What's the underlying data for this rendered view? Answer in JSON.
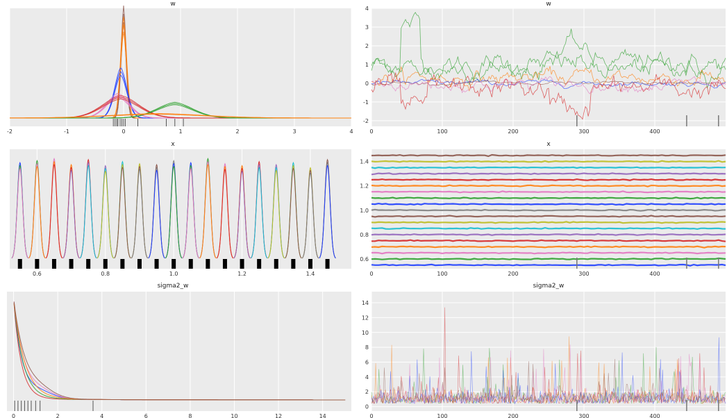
{
  "colors": {
    "panel_bg": "#ebebeb",
    "grid": "#ffffff",
    "palette": [
      "#1f3fff",
      "#2ca02c",
      "#e377c2",
      "#ff7f0e",
      "#d62728",
      "#9467bd",
      "#17becf",
      "#bcbd22",
      "#8c564b",
      "#7f7f7f"
    ]
  },
  "chart_data": [
    {
      "type": "area",
      "title": "w",
      "xlim": [
        -2,
        4
      ],
      "xticks": [
        "-2",
        "-1",
        "0",
        "1",
        "2",
        "3",
        "4"
      ],
      "grid": true,
      "description": "posterior density curves of w (several chains)",
      "series": [
        {
          "color": "#8c564b",
          "center": 0.0,
          "width": 0.05,
          "peak": 1.0
        },
        {
          "color": "#ff7f0e",
          "center": 0.0,
          "width": 0.06,
          "peak": 0.9
        },
        {
          "color": "#1f3fff",
          "center": -0.05,
          "width": 0.12,
          "peak": 0.45
        },
        {
          "color": "#e377c2",
          "center": -0.1,
          "width": 0.22,
          "peak": 0.22
        },
        {
          "color": "#d62728",
          "center": -0.05,
          "width": 0.35,
          "peak": 0.2
        },
        {
          "color": "#2ca02c",
          "center": 0.9,
          "width": 0.35,
          "peak": 0.14
        },
        {
          "color": "#ff7f0e",
          "center": 0.6,
          "width": 0.9,
          "peak": 0.04
        }
      ],
      "rug": [
        -0.18,
        -0.15,
        -0.12,
        -0.1,
        -0.06,
        -0.03,
        0.0,
        0.03,
        0.25,
        0.75,
        0.9,
        1.05
      ]
    },
    {
      "type": "line",
      "title": "w",
      "xlim": [
        0,
        500
      ],
      "ylim": [
        -2.3,
        4
      ],
      "xticks": [
        "0",
        "100",
        "200",
        "300",
        "400"
      ],
      "yticks": [
        "-2",
        "-1",
        "0",
        "1",
        "2",
        "3",
        "4"
      ],
      "grid": true,
      "description": "trace of w samples per chain",
      "series": [
        {
          "color": "#2ca02c",
          "level": 1.0,
          "amp": 0.35
        },
        {
          "color": "#2ca02c",
          "level": 0.8,
          "amp": 0.3
        },
        {
          "color": "#ff7f0e",
          "level": 0.3,
          "amp": 0.25
        },
        {
          "color": "#1f3fff",
          "level": 0.0,
          "amp": 0.08
        },
        {
          "color": "#8c564b",
          "level": 0.0,
          "amp": 0.05
        },
        {
          "color": "#e377c2",
          "level": -0.05,
          "amp": 0.18
        },
        {
          "color": "#d62728",
          "level": -0.3,
          "amp": 0.35
        }
      ],
      "markers": [
        290,
        445,
        490
      ]
    },
    {
      "type": "area",
      "title": "x",
      "xlim": [
        0.52,
        1.52
      ],
      "xticks": [
        "0.6",
        "0.8",
        "1.0",
        "1.2",
        "1.4"
      ],
      "grid": true,
      "description": "narrow density peaks of x components",
      "peaks": [
        0.55,
        0.6,
        0.65,
        0.7,
        0.75,
        0.8,
        0.85,
        0.9,
        0.95,
        1.0,
        1.05,
        1.1,
        1.15,
        1.2,
        1.25,
        1.3,
        1.35,
        1.4,
        1.45
      ],
      "peak_heights": [
        0.95,
        0.97,
        0.99,
        0.93,
        0.98,
        0.92,
        0.96,
        0.94,
        0.93,
        0.97,
        0.95,
        0.99,
        0.94,
        0.92,
        0.96,
        0.93,
        0.95,
        0.9,
        0.98
      ]
    },
    {
      "type": "line",
      "title": "x",
      "xlim": [
        0,
        500
      ],
      "ylim": [
        0.52,
        1.5
      ],
      "xticks": [
        "0",
        "100",
        "200",
        "300",
        "400"
      ],
      "yticks": [
        "0.6",
        "0.8",
        "1.0",
        "1.2",
        "1.4"
      ],
      "grid": true,
      "description": "trace of x components — flat lines",
      "levels": [
        0.55,
        0.6,
        0.65,
        0.7,
        0.75,
        0.8,
        0.85,
        0.9,
        0.95,
        1.0,
        1.05,
        1.1,
        1.15,
        1.2,
        1.25,
        1.3,
        1.35,
        1.4,
        1.45
      ],
      "markers": [
        290,
        445,
        490
      ]
    },
    {
      "type": "area",
      "title": "sigma2_w",
      "xlim": [
        -0.3,
        15.3
      ],
      "xticks": [
        "0",
        "2",
        "4",
        "6",
        "8",
        "10",
        "12",
        "14"
      ],
      "grid": true,
      "description": "density of sigma2_w (decaying)",
      "rug": [
        0.05,
        0.2,
        0.35,
        0.5,
        0.65,
        0.8,
        1.0,
        1.2,
        3.6
      ]
    },
    {
      "type": "line",
      "title": "sigma2_w",
      "xlim": [
        0,
        500
      ],
      "ylim": [
        -0.6,
        15.5
      ],
      "xticks": [
        "0",
        "100",
        "200",
        "300",
        "400"
      ],
      "yticks": [
        "0",
        "2",
        "4",
        "6",
        "8",
        "10",
        "12",
        "14"
      ],
      "grid": true,
      "description": "trace of sigma2_w samples — spiky noise",
      "markers": [
        290,
        445,
        490
      ]
    }
  ]
}
